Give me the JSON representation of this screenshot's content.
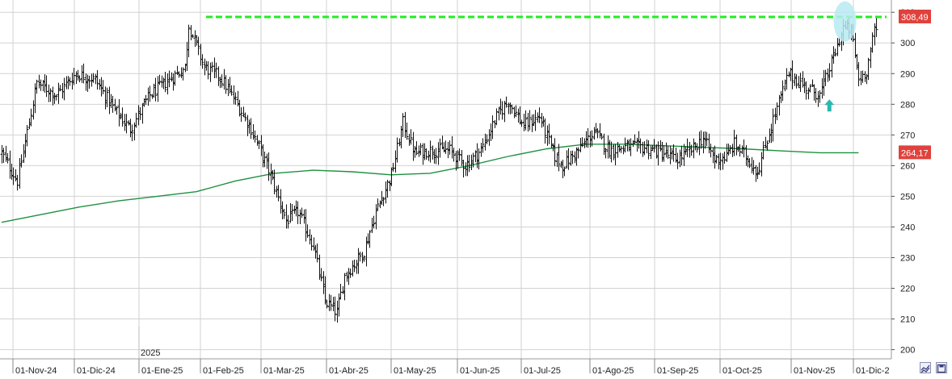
{
  "chart_data": {
    "type": "ohlc",
    "year_label": "2025",
    "y_ticks": [
      200,
      210,
      220,
      230,
      240,
      250,
      260,
      270,
      280,
      290,
      300,
      310
    ],
    "y_range": [
      197,
      314
    ],
    "x_ticks": [
      "01-Nov-24",
      "01-Dic-24",
      "01-Ene-25",
      "01-Feb-25",
      "01-Mar-25",
      "01-Abr-25",
      "01-May-25",
      "01-Jun-25",
      "01-Jul-25",
      "01-Ago-25",
      "01-Sep-25",
      "01-Oct-25",
      "01-Nov-25",
      "01-Dic-2"
    ],
    "resistance": {
      "value": 308.49,
      "label": "308,49",
      "color": "#22ee22"
    },
    "moving_average": {
      "label": "264,17",
      "color": "#1e9140",
      "values": [
        [
          0,
          241.5
        ],
        [
          20,
          244.0
        ],
        [
          40,
          246.5
        ],
        [
          60,
          248.5
        ],
        [
          80,
          250.0
        ],
        [
          100,
          251.5
        ],
        [
          120,
          255.0
        ],
        [
          140,
          257.5
        ],
        [
          160,
          258.5
        ],
        [
          180,
          258.0
        ],
        [
          200,
          257.0
        ],
        [
          220,
          257.5
        ],
        [
          240,
          260.0
        ],
        [
          260,
          263.0
        ],
        [
          280,
          265.5
        ],
        [
          300,
          267.0
        ],
        [
          320,
          267.0
        ],
        [
          340,
          266.5
        ],
        [
          360,
          266.0
        ],
        [
          380,
          265.5
        ],
        [
          400,
          264.8
        ],
        [
          420,
          264.2
        ],
        [
          440,
          264.2
        ]
      ]
    },
    "price_path": [
      [
        0,
        264
      ],
      [
        8,
        255
      ],
      [
        18,
        287
      ],
      [
        28,
        283
      ],
      [
        38,
        290
      ],
      [
        48,
        288
      ],
      [
        58,
        278
      ],
      [
        66,
        272
      ],
      [
        76,
        283
      ],
      [
        84,
        287
      ],
      [
        94,
        292
      ],
      [
        96,
        306
      ],
      [
        104,
        292
      ],
      [
        112,
        289
      ],
      [
        120,
        281
      ],
      [
        128,
        272
      ],
      [
        138,
        257
      ],
      [
        146,
        242
      ],
      [
        152,
        245
      ],
      [
        160,
        234
      ],
      [
        166,
        216
      ],
      [
        172,
        212
      ],
      [
        176,
        224
      ],
      [
        186,
        232
      ],
      [
        192,
        245
      ],
      [
        200,
        257
      ],
      [
        206,
        274
      ],
      [
        212,
        264
      ],
      [
        220,
        265
      ],
      [
        230,
        265
      ],
      [
        238,
        260
      ],
      [
        246,
        265
      ],
      [
        254,
        276
      ],
      [
        260,
        281
      ],
      [
        268,
        273
      ],
      [
        276,
        276
      ],
      [
        284,
        263
      ],
      [
        288,
        260
      ],
      [
        296,
        265
      ],
      [
        304,
        271
      ],
      [
        312,
        265
      ],
      [
        320,
        266
      ],
      [
        330,
        266
      ],
      [
        340,
        264
      ],
      [
        346,
        262
      ],
      [
        354,
        265
      ],
      [
        360,
        269
      ],
      [
        366,
        262
      ],
      [
        372,
        263
      ],
      [
        376,
        267
      ],
      [
        382,
        263
      ],
      [
        388,
        258
      ],
      [
        396,
        275
      ],
      [
        404,
        290
      ],
      [
        412,
        286
      ],
      [
        420,
        283
      ],
      [
        428,
        297
      ],
      [
        432,
        305
      ],
      [
        436,
        304
      ],
      [
        440,
        288
      ],
      [
        444,
        291
      ],
      [
        448,
        304
      ]
    ],
    "annotations": [
      {
        "type": "arrow-up",
        "color": "#2ab7b0",
        "at": [
          425,
          279.5
        ]
      },
      {
        "type": "ellipse",
        "color": "#b8eaf2",
        "at": [
          433,
          307
        ]
      }
    ],
    "colors": {
      "bars": "#111111",
      "grid": "#d2d2d2",
      "badge": "#e0413c"
    }
  }
}
